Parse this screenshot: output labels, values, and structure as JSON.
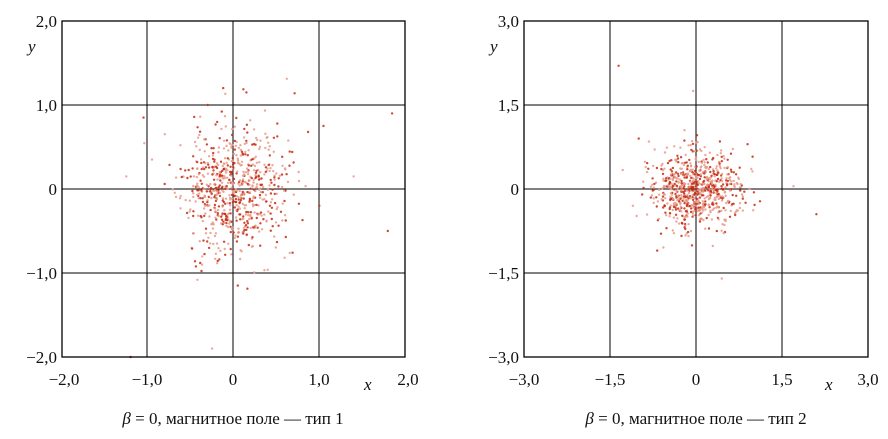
{
  "colors": {
    "point_light": "#e89a88",
    "point_dark": "#c42a12",
    "frame": "#000000"
  },
  "chart_data": [
    {
      "type": "scatter",
      "xlim": [
        -2.0,
        2.0
      ],
      "ylim": [
        -2.0,
        2.0
      ],
      "x_ticks": [
        -2.0,
        -1.0,
        0,
        1.0,
        2.0
      ],
      "y_ticks": [
        -2.0,
        -1.0,
        0,
        1.0,
        2.0
      ],
      "x_tick_labels": [
        "−2,0",
        "−1,0",
        "0",
        "1,0",
        "2,0"
      ],
      "y_tick_labels": [
        "−2,0",
        "−1,0",
        "0",
        "1,0",
        "2,0"
      ],
      "xlabel": "x",
      "ylabel": "y",
      "grid": true,
      "caption": {
        "symbol": "β",
        "text": " = 0, магнитное поле — тип 1"
      },
      "cloud": {
        "n": 720,
        "center": [
          0.0,
          0.0
        ],
        "sigma": [
          0.3,
          0.38
        ],
        "seed": 11
      },
      "points": [
        [
          -0.3,
          1.0
        ],
        [
          0.15,
          1.15
        ],
        [
          1.85,
          0.9
        ],
        [
          1.8,
          -0.5
        ],
        [
          -1.25,
          0.15
        ],
        [
          -1.2,
          -2.0
        ],
        [
          -0.25,
          -1.9
        ],
        [
          1.05,
          0.75
        ],
        [
          1.4,
          0.15
        ],
        [
          1.0,
          -0.2
        ],
        [
          -1.05,
          0.85
        ],
        [
          0.05,
          -1.15
        ],
        [
          -0.95,
          0.35
        ]
      ]
    },
    {
      "type": "scatter",
      "xlim": [
        -3.0,
        3.0
      ],
      "ylim": [
        -3.0,
        3.0
      ],
      "x_ticks": [
        -3.0,
        -1.5,
        0,
        1.5,
        3.0
      ],
      "y_ticks": [
        -3.0,
        -1.5,
        0,
        1.5,
        3.0
      ],
      "x_tick_labels": [
        "−3,0",
        "−1,5",
        "0",
        "1,5",
        "3,0"
      ],
      "y_tick_labels": [
        "−3,0",
        "−1,5",
        "0",
        "1,5",
        "3,0"
      ],
      "xlabel": "x",
      "ylabel": "y",
      "grid": true,
      "caption": {
        "symbol": "β",
        "text": " = 0, магнитное поле — тип 2"
      },
      "cloud": {
        "n": 760,
        "center": [
          0.0,
          0.0
        ],
        "sigma": [
          0.38,
          0.33
        ],
        "seed": 29
      },
      "points": [
        [
          -1.35,
          2.2
        ],
        [
          -0.05,
          1.75
        ],
        [
          2.1,
          -0.45
        ],
        [
          1.7,
          0.05
        ],
        [
          0.45,
          -1.6
        ],
        [
          -1.0,
          0.9
        ],
        [
          -1.1,
          -0.3
        ],
        [
          0.9,
          0.8
        ],
        [
          -0.2,
          1.05
        ]
      ]
    }
  ]
}
